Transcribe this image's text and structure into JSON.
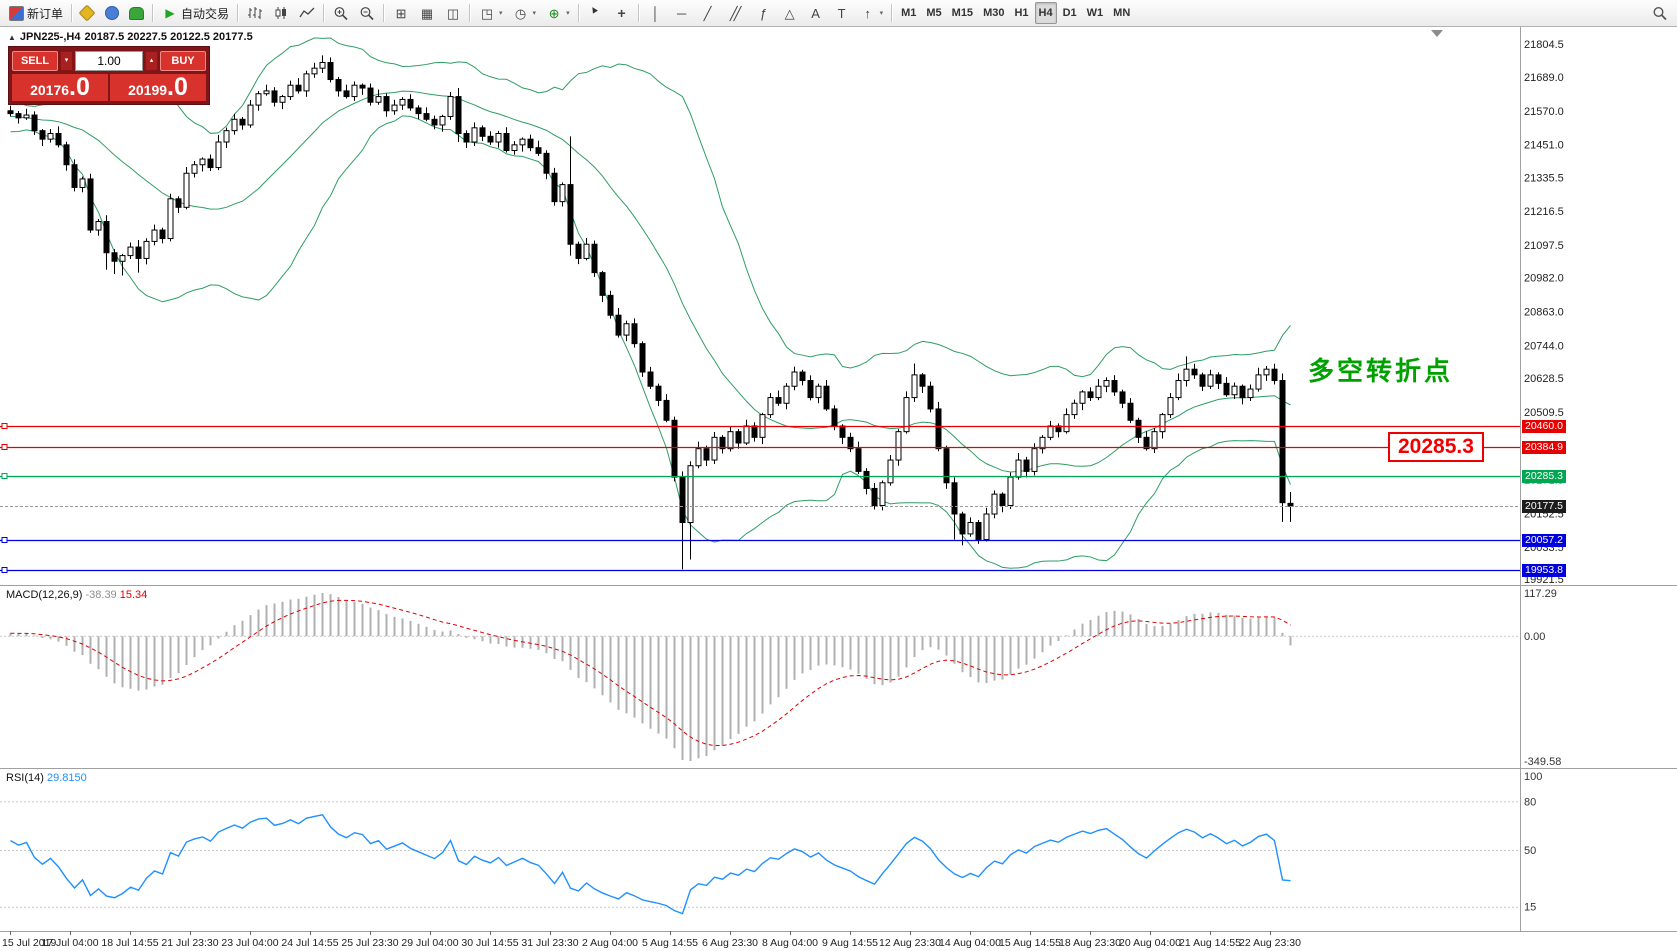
{
  "toolbar": {
    "groups": [
      {
        "buttons": [
          {
            "name": "new-order-button",
            "icon": "neworder",
            "label": "新订单"
          }
        ]
      },
      {
        "buttons": [
          {
            "name": "metaeditor-button",
            "icon": "editor"
          },
          {
            "name": "profiles-button",
            "icon": "profile"
          },
          {
            "name": "market-button",
            "icon": "market"
          }
        ]
      },
      {
        "buttons": [
          {
            "name": "autotrading-button",
            "icon": "play",
            "label": "自动交易"
          }
        ]
      },
      {
        "buttons": [
          {
            "name": "bar-chart-button",
            "icon": "bars"
          },
          {
            "name": "candle-chart-button",
            "icon": "candles"
          },
          {
            "name": "line-chart-button",
            "icon": "linechart"
          }
        ]
      },
      {
        "buttons": [
          {
            "name": "zoom-in-button",
            "icon": "zoomin"
          },
          {
            "name": "zoom-out-button",
            "icon": "zoomout"
          }
        ]
      },
      {
        "buttons": [
          {
            "name": "grid-button",
            "icon": "grid"
          },
          {
            "name": "tile-windows-button",
            "icon": "tile"
          },
          {
            "name": "cascade-button",
            "icon": "cascade"
          }
        ]
      },
      {
        "buttons": [
          {
            "name": "new-chart-button",
            "icon": "newchart",
            "dropdown": true
          },
          {
            "name": "periods-button",
            "icon": "clock",
            "dropdown": true
          },
          {
            "name": "indicators-button",
            "icon": "indicators",
            "dropdown": true
          }
        ]
      },
      {
        "buttons": [
          {
            "name": "cursor-button",
            "icon": "cursor"
          },
          {
            "name": "crosshair-button",
            "icon": "crosshair"
          }
        ]
      },
      {
        "buttons": [
          {
            "name": "vline-button",
            "icon": "vline"
          },
          {
            "name": "hline-button",
            "icon": "hline"
          },
          {
            "name": "trendline-button",
            "icon": "trendline"
          },
          {
            "name": "channel-button",
            "icon": "channel"
          },
          {
            "name": "fibonacci-button",
            "icon": "fibo"
          },
          {
            "name": "shapes-button",
            "icon": "shapes"
          },
          {
            "name": "text-button",
            "icon": "textA"
          },
          {
            "name": "label-button",
            "icon": "textT"
          },
          {
            "name": "arrows-button",
            "icon": "arrowmark",
            "dropdown": true
          }
        ]
      },
      {
        "timeframes": true,
        "buttons": [
          {
            "name": "tf-m1",
            "label": "M1"
          },
          {
            "name": "tf-m5",
            "label": "M5"
          },
          {
            "name": "tf-m15",
            "label": "M15"
          },
          {
            "name": "tf-m30",
            "label": "M30"
          },
          {
            "name": "tf-h1",
            "label": "H1"
          },
          {
            "name": "tf-h4",
            "label": "H4",
            "active": true
          },
          {
            "name": "tf-d1",
            "label": "D1"
          },
          {
            "name": "tf-w1",
            "label": "W1"
          },
          {
            "name": "tf-mn",
            "label": "MN"
          }
        ]
      }
    ],
    "right_buttons": [
      {
        "name": "search-button",
        "icon": "magnifier"
      }
    ]
  },
  "chart_header": {
    "symbol": "JPN225-,H4",
    "ohlc": "20187.5 20227.5 20122.5 20177.5"
  },
  "one_click": {
    "sell_label": "SELL",
    "buy_label": "BUY",
    "volume": "1.00",
    "sell_price_main": "20176",
    "sell_price_big": ".0",
    "buy_price_main": "20199",
    "buy_price_big": ".0"
  },
  "annotations": {
    "turning_point": "多空转折点",
    "price_callout": "20285.3"
  },
  "indicators": {
    "macd": {
      "label": "MACD(12,26,9)",
      "value": "-38.39",
      "signal": "15.34",
      "axis_max": "117.29",
      "axis_zero": "0.00",
      "axis_min": "-349.58"
    },
    "rsi": {
      "label": "RSI(14)",
      "value": "29.8150",
      "axis_top": "100",
      "levels": [
        80,
        50,
        15
      ]
    }
  },
  "price_axis": {
    "labels": [
      "21804.5",
      "21689.0",
      "21570.0",
      "21451.0",
      "21335.5",
      "21216.5",
      "21097.5",
      "20982.0",
      "20863.0",
      "20744.0",
      "20628.5",
      "20509.5",
      "20390.5",
      "20271.5",
      "20152.5",
      "20033.5",
      "19921.5"
    ]
  },
  "hlines": [
    {
      "price": 20460.0,
      "label": "20460.0",
      "color": "#e60000"
    },
    {
      "price": 20384.9,
      "label": "20384.9",
      "color": "#e60000"
    },
    {
      "price": 20285.3,
      "label": "20285.3",
      "color": "#00a651"
    },
    {
      "price": 20057.2,
      "label": "20057.2",
      "color": "#0000dd"
    },
    {
      "price": 19953.8,
      "label": "19953.8",
      "color": "#0000dd"
    }
  ],
  "current_price": {
    "bid": 20177.5,
    "label": "20177.5",
    "tag_color": "#1c1c1c"
  },
  "time_axis": [
    "15 Jul 2019",
    "17 Jul 04:00",
    "18 Jul 14:55",
    "21 Jul 23:30",
    "23 Jul 04:00",
    "24 Jul 14:55",
    "25 Jul 23:30",
    "29 Jul 04:00",
    "30 Jul 14:55",
    "31 Jul 23:30",
    "2 Aug 04:00",
    "5 Aug 14:55",
    "6 Aug 23:30",
    "8 Aug 04:00",
    "9 Aug 14:55",
    "12 Aug 23:30",
    "14 Aug 04:00",
    "15 Aug 14:55",
    "18 Aug 23:30",
    "20 Aug 04:00",
    "21 Aug 14:55",
    "22 Aug 23:30"
  ],
  "chart_data": {
    "type": "candlestick",
    "symbol": "JPN225",
    "timeframe": "H4",
    "title": "JPN225-,H4",
    "price_range": [
      19900,
      21865
    ],
    "bollinger": {
      "period": 20,
      "deviation": 2,
      "color": "#2e9e63"
    },
    "macd_params": [
      12,
      26,
      9
    ],
    "rsi_period": 14,
    "warmup_closes": [
      21480,
      21500,
      21530,
      21560,
      21540,
      21570,
      21600,
      21580,
      21550,
      21530,
      21560,
      21590,
      21610,
      21580,
      21550,
      21520,
      21540,
      21560,
      21530,
      21500,
      21520,
      21550,
      21580,
      21560,
      21540,
      21510,
      21530,
      21550,
      21570,
      21560
    ],
    "candles": [
      [
        21570,
        21588,
        21550,
        21560
      ],
      [
        21560,
        21569,
        21525,
        21545
      ],
      [
        21545,
        21577,
        21538,
        21555
      ],
      [
        21555,
        21568,
        21485,
        21500
      ],
      [
        21500,
        21506,
        21446,
        21470
      ],
      [
        21470,
        21506,
        21458,
        21490
      ],
      [
        21490,
        21515,
        21441,
        21450
      ],
      [
        21450,
        21461,
        21359,
        21380
      ],
      [
        21380,
        21399,
        21286,
        21300
      ],
      [
        21300,
        21338,
        21283,
        21330
      ],
      [
        21330,
        21348,
        21140,
        21150
      ],
      [
        21150,
        21189,
        21130,
        21180
      ],
      [
        21180,
        21202,
        21010,
        21070
      ],
      [
        21070,
        21083,
        20995,
        21040
      ],
      [
        21040,
        21066,
        20990,
        21060
      ],
      [
        21060,
        21106,
        21048,
        21090
      ],
      [
        21090,
        21115,
        21000,
        21050
      ],
      [
        21050,
        21121,
        21029,
        21110
      ],
      [
        21110,
        21169,
        21096,
        21150
      ],
      [
        21150,
        21158,
        21103,
        21120
      ],
      [
        21120,
        21278,
        21110,
        21260
      ],
      [
        21260,
        21269,
        21210,
        21230
      ],
      [
        21230,
        21372,
        21223,
        21350
      ],
      [
        21350,
        21393,
        21335,
        21380
      ],
      [
        21380,
        21406,
        21356,
        21400
      ],
      [
        21400,
        21416,
        21358,
        21370
      ],
      [
        21370,
        21485,
        21361,
        21460
      ],
      [
        21460,
        21511,
        21439,
        21500
      ],
      [
        21500,
        21559,
        21486,
        21540
      ],
      [
        21540,
        21548,
        21503,
        21520
      ],
      [
        21520,
        21608,
        21510,
        21590
      ],
      [
        21590,
        21639,
        21570,
        21630
      ],
      [
        21630,
        21662,
        21623,
        21640
      ],
      [
        21640,
        21653,
        21585,
        21600
      ],
      [
        21600,
        21626,
        21576,
        21620
      ],
      [
        21620,
        21676,
        21608,
        21660
      ],
      [
        21660,
        21685,
        21631,
        21640
      ],
      [
        21640,
        21711,
        21619,
        21700
      ],
      [
        21700,
        21739,
        21686,
        21720
      ],
      [
        21720,
        21765,
        21703,
        21740
      ],
      [
        21740,
        21758,
        21670,
        21680
      ],
      [
        21680,
        21689,
        21620,
        21640
      ],
      [
        21640,
        21662,
        21613,
        21620
      ],
      [
        21620,
        21673,
        21605,
        21660
      ],
      [
        21660,
        21666,
        21626,
        21650
      ],
      [
        21650,
        21666,
        21588,
        21600
      ],
      [
        21600,
        21645,
        21591,
        21620
      ],
      [
        21620,
        21631,
        21549,
        21570
      ],
      [
        21570,
        21609,
        21556,
        21590
      ],
      [
        21590,
        21618,
        21573,
        21610
      ],
      [
        21610,
        21628,
        21570,
        21580
      ],
      [
        21580,
        21589,
        21540,
        21560
      ],
      [
        21560,
        21582,
        21533,
        21540
      ],
      [
        21540,
        21553,
        21505,
        21520
      ],
      [
        21520,
        21556,
        21496,
        21550
      ],
      [
        21550,
        21636,
        21538,
        21620
      ],
      [
        21620,
        21650,
        21460,
        21490
      ],
      [
        21490,
        21501,
        21439,
        21460
      ],
      [
        21460,
        21529,
        21446,
        21510
      ],
      [
        21510,
        21518,
        21463,
        21480
      ],
      [
        21480,
        21498,
        21450,
        21460
      ],
      [
        21460,
        21499,
        21440,
        21490
      ],
      [
        21490,
        21512,
        21423,
        21430
      ],
      [
        21430,
        21463,
        21415,
        21450
      ],
      [
        21450,
        21476,
        21426,
        21470
      ],
      [
        21470,
        21486,
        21428,
        21440
      ],
      [
        21440,
        21465,
        21411,
        21420
      ],
      [
        21420,
        21431,
        21329,
        21350
      ],
      [
        21350,
        21369,
        21236,
        21250
      ],
      [
        21250,
        21318,
        21233,
        21310
      ],
      [
        21310,
        21480,
        21060,
        21100
      ],
      [
        21100,
        21109,
        21030,
        21050
      ],
      [
        21050,
        21122,
        21043,
        21100
      ],
      [
        21100,
        21113,
        20985,
        21000
      ],
      [
        21000,
        21006,
        20896,
        20920
      ],
      [
        20920,
        20936,
        20838,
        20850
      ],
      [
        20850,
        20875,
        20771,
        20780
      ],
      [
        20780,
        20831,
        20759,
        20820
      ],
      [
        20820,
        20839,
        20736,
        20750
      ],
      [
        20750,
        20758,
        20633,
        20650
      ],
      [
        20650,
        20668,
        20590,
        20600
      ],
      [
        20600,
        20609,
        20530,
        20550
      ],
      [
        20550,
        20572,
        20473,
        20480
      ],
      [
        20480,
        20493,
        20265,
        20280
      ],
      [
        20280,
        20300,
        19955,
        20120
      ],
      [
        20120,
        20336,
        19990,
        20320
      ],
      [
        20320,
        20405,
        20311,
        20380
      ],
      [
        20380,
        20391,
        20319,
        20340
      ],
      [
        20340,
        20439,
        20326,
        20420
      ],
      [
        20420,
        20428,
        20363,
        20380
      ],
      [
        20380,
        20458,
        20370,
        20440
      ],
      [
        20440,
        20449,
        20380,
        20400
      ],
      [
        20400,
        20482,
        20393,
        20460
      ],
      [
        20460,
        20473,
        20405,
        20420
      ],
      [
        20420,
        20506,
        20396,
        20500
      ],
      [
        20500,
        20576,
        20488,
        20560
      ],
      [
        20560,
        20585,
        20531,
        20540
      ],
      [
        20540,
        20611,
        20519,
        20600
      ],
      [
        20600,
        20669,
        20586,
        20650
      ],
      [
        20650,
        20658,
        20603,
        20620
      ],
      [
        20620,
        20638,
        20550,
        20560
      ],
      [
        20560,
        20609,
        20540,
        20600
      ],
      [
        20600,
        20622,
        20513,
        20520
      ],
      [
        20520,
        20533,
        20445,
        20460
      ],
      [
        20460,
        20466,
        20396,
        20420
      ],
      [
        20420,
        20436,
        20368,
        20380
      ],
      [
        20380,
        20405,
        20291,
        20300
      ],
      [
        20300,
        20311,
        20219,
        20240
      ],
      [
        20240,
        20259,
        20166,
        20180
      ],
      [
        20180,
        20268,
        20163,
        20260
      ],
      [
        20260,
        20358,
        20250,
        20340
      ],
      [
        20340,
        20449,
        20320,
        20440
      ],
      [
        20440,
        20582,
        20433,
        20560
      ],
      [
        20560,
        20680,
        20545,
        20640
      ],
      [
        20640,
        20646,
        20576,
        20600
      ],
      [
        20600,
        20616,
        20508,
        20520
      ],
      [
        20520,
        20545,
        20371,
        20380
      ],
      [
        20380,
        20391,
        20239,
        20260
      ],
      [
        20260,
        20279,
        20060,
        20150
      ],
      [
        20150,
        20158,
        20040,
        20080
      ],
      [
        20080,
        20138,
        20070,
        20120
      ],
      [
        20120,
        20129,
        20045,
        20060
      ],
      [
        20060,
        20172,
        20053,
        20150
      ],
      [
        20150,
        20233,
        20135,
        20220
      ],
      [
        20220,
        20226,
        20156,
        20180
      ],
      [
        20180,
        20296,
        20168,
        20280
      ],
      [
        20280,
        20365,
        20271,
        20340
      ],
      [
        20340,
        20351,
        20279,
        20300
      ],
      [
        20300,
        20399,
        20286,
        20380
      ],
      [
        20380,
        20428,
        20363,
        20420
      ],
      [
        20420,
        20478,
        20410,
        20460
      ],
      [
        20460,
        20469,
        20420,
        20440
      ],
      [
        20440,
        20522,
        20433,
        20500
      ],
      [
        20500,
        20553,
        20485,
        20540
      ],
      [
        20540,
        20586,
        20516,
        20580
      ],
      [
        20580,
        20596,
        20548,
        20560
      ],
      [
        20560,
        20625,
        20551,
        20600
      ],
      [
        20600,
        20631,
        20579,
        20620
      ],
      [
        20620,
        20639,
        20566,
        20580
      ],
      [
        20580,
        20588,
        20523,
        20540
      ],
      [
        20540,
        20558,
        20470,
        20480
      ],
      [
        20480,
        20489,
        20400,
        20420
      ],
      [
        20420,
        20442,
        20373,
        20380
      ],
      [
        20380,
        20453,
        20365,
        20440
      ],
      [
        20440,
        20506,
        20416,
        20500
      ],
      [
        20500,
        20576,
        20488,
        20560
      ],
      [
        20560,
        20645,
        20551,
        20620
      ],
      [
        20620,
        20705,
        20599,
        20660
      ],
      [
        20660,
        20679,
        20626,
        20640
      ],
      [
        20640,
        20648,
        20583,
        20600
      ],
      [
        20600,
        20658,
        20590,
        20640
      ],
      [
        20640,
        20649,
        20590,
        20610
      ],
      [
        20610,
        20632,
        20563,
        20570
      ],
      [
        20570,
        20613,
        20555,
        20600
      ],
      [
        20600,
        20606,
        20536,
        20560
      ],
      [
        20560,
        20606,
        20548,
        20590
      ],
      [
        20590,
        20665,
        20581,
        20640
      ],
      [
        20640,
        20671,
        20619,
        20660
      ],
      [
        20660,
        20679,
        20606,
        20620
      ],
      [
        20620,
        20645,
        20122.5,
        20190
      ],
      [
        20187.5,
        20227.5,
        20122.5,
        20177.5
      ]
    ]
  }
}
